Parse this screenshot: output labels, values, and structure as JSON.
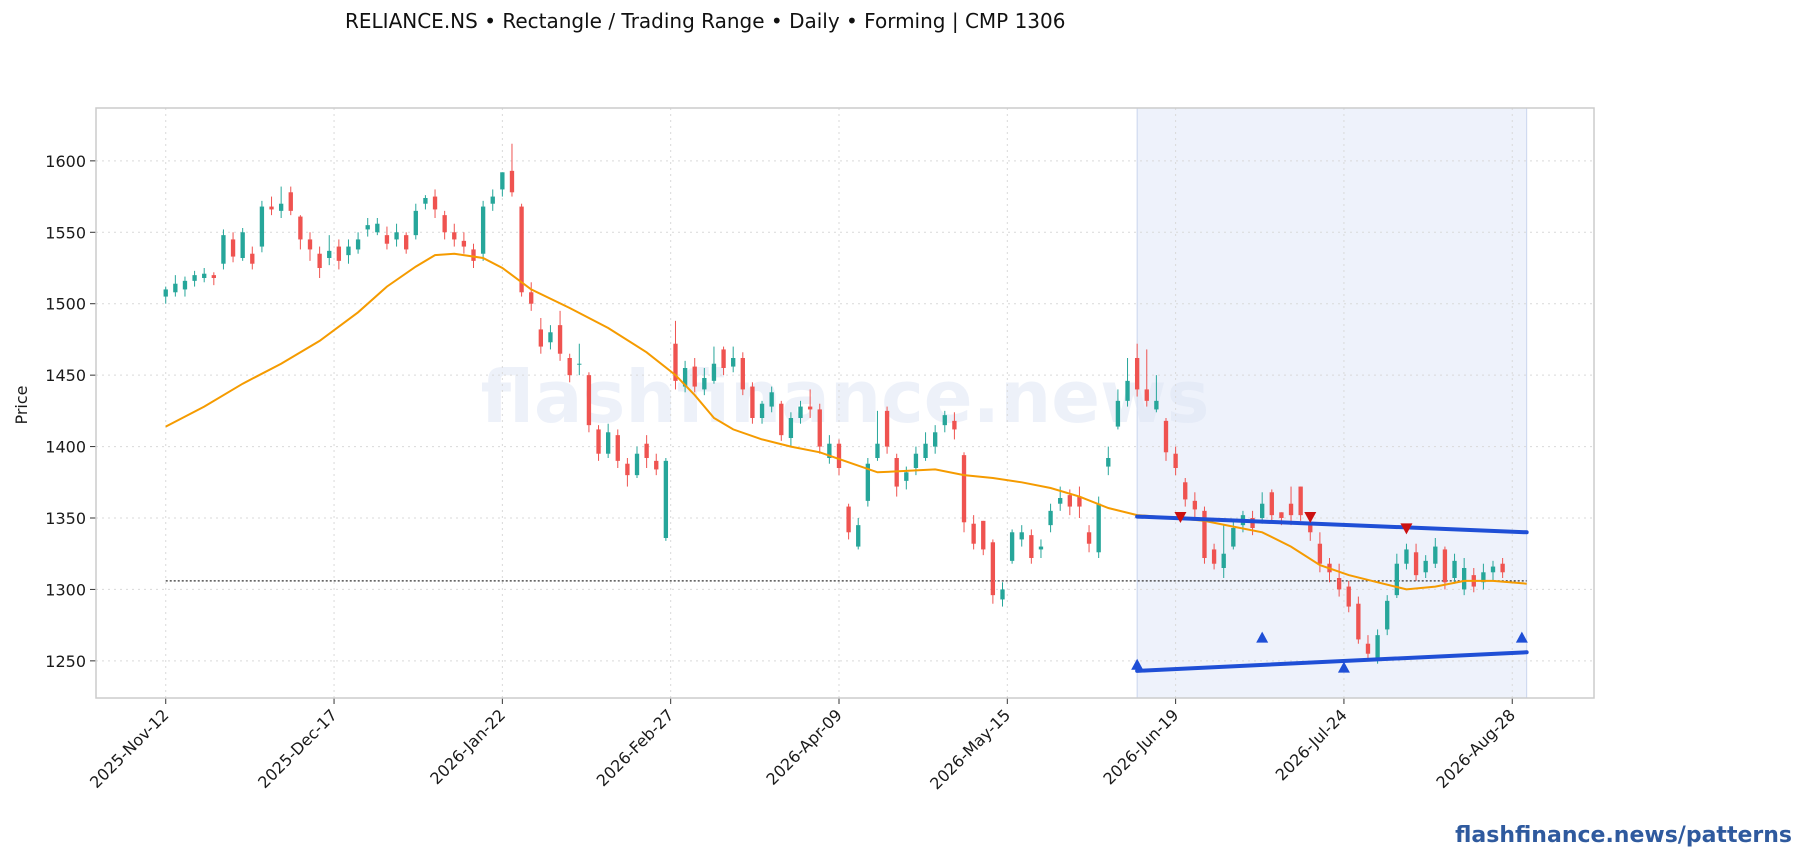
{
  "chart_data": {
    "type": "candlestick",
    "title": "RELIANCE.NS  •  Rectangle / Trading Range  •  Daily  •  Forming  |  CMP 1306",
    "ticker": "RELIANCE.NS",
    "pattern": "Rectangle / Trading Range",
    "timeframe": "Daily",
    "status": "Forming",
    "cmp": 1306,
    "xlabel": "",
    "ylabel": "Price",
    "ylim": [
      1224,
      1637
    ],
    "y_ticks": [
      1250,
      1300,
      1350,
      1400,
      1450,
      1500,
      1550,
      1600
    ],
    "x_ticks": [
      {
        "label": "2025-Nov-12",
        "index": 0
      },
      {
        "label": "2025-Dec-17",
        "index": 35
      },
      {
        "label": "2026-Jan-22",
        "index": 70
      },
      {
        "label": "2026-Feb-27",
        "index": 105
      },
      {
        "label": "2026-Apr-09",
        "index": 140
      },
      {
        "label": "2026-May-15",
        "index": 175
      },
      {
        "label": "2026-Jun-19",
        "index": 210
      },
      {
        "label": "2026-Jul-24",
        "index": 245
      },
      {
        "label": "2026-Aug-28",
        "index": 280
      }
    ],
    "x_range": [
      -14.5,
      297
    ],
    "grid": true,
    "colors": {
      "up": "#26a69a",
      "down": "#ef5350",
      "ma": "#f59b00",
      "pattern_line": "#1f4fd6",
      "marker_high": "#cc1111",
      "marker_low": "#1f4fd6",
      "zone": "#e8edfa",
      "cmp_line": "#333333",
      "grid": "#d9d9d9",
      "frame": "#cccccc"
    },
    "cmp_line": {
      "value": 1306,
      "from_index": 0,
      "to_index": 283
    },
    "pattern_zone": {
      "from_index": 202,
      "to_index": 283
    },
    "resistance_line": {
      "from": {
        "index": 202,
        "value": 1351
      },
      "to": {
        "index": 283,
        "value": 1340
      }
    },
    "support_line": {
      "from": {
        "index": 202,
        "value": 1243
      },
      "to": {
        "index": 283,
        "value": 1256
      }
    },
    "marker_highs": [
      {
        "index": 211,
        "value": 1350
      },
      {
        "index": 238,
        "value": 1350
      },
      {
        "index": 258,
        "value": 1342
      }
    ],
    "marker_lows": [
      {
        "index": 202,
        "value": 1248
      },
      {
        "index": 228,
        "value": 1267
      },
      {
        "index": 245,
        "value": 1246
      },
      {
        "index": 282,
        "value": 1267
      }
    ],
    "moving_average": [
      [
        0,
        1414
      ],
      [
        8,
        1428
      ],
      [
        16,
        1444
      ],
      [
        24,
        1458
      ],
      [
        32,
        1474
      ],
      [
        40,
        1494
      ],
      [
        46,
        1512
      ],
      [
        52,
        1526
      ],
      [
        56,
        1534
      ],
      [
        60,
        1535
      ],
      [
        66,
        1532
      ],
      [
        70,
        1525
      ],
      [
        76,
        1510
      ],
      [
        84,
        1497
      ],
      [
        92,
        1483
      ],
      [
        100,
        1466
      ],
      [
        106,
        1450
      ],
      [
        110,
        1436
      ],
      [
        114,
        1420
      ],
      [
        118,
        1412
      ],
      [
        124,
        1405
      ],
      [
        130,
        1400
      ],
      [
        136,
        1396
      ],
      [
        142,
        1389
      ],
      [
        148,
        1382
      ],
      [
        154,
        1383
      ],
      [
        160,
        1384
      ],
      [
        166,
        1380
      ],
      [
        172,
        1378
      ],
      [
        178,
        1375
      ],
      [
        184,
        1371
      ],
      [
        190,
        1365
      ],
      [
        196,
        1357
      ],
      [
        202,
        1352
      ],
      [
        210,
        1350
      ],
      [
        216,
        1348
      ],
      [
        222,
        1344
      ],
      [
        228,
        1340
      ],
      [
        234,
        1330
      ],
      [
        240,
        1317
      ],
      [
        246,
        1310
      ],
      [
        252,
        1305
      ],
      [
        258,
        1300
      ],
      [
        264,
        1302
      ],
      [
        270,
        1306
      ],
      [
        276,
        1306
      ],
      [
        283,
        1304
      ]
    ],
    "ma_points_xy": [],
    "candles": [
      [
        0,
        1505,
        1510,
        1500,
        1512
      ],
      [
        2,
        1508,
        1514,
        1505,
        1520
      ],
      [
        4,
        1510,
        1516,
        1505,
        1519
      ],
      [
        6,
        1516,
        1520,
        1512,
        1523
      ],
      [
        8,
        1518,
        1521,
        1515,
        1525
      ],
      [
        10,
        1520,
        1518,
        1513,
        1522
      ],
      [
        12,
        1528,
        1548,
        1524,
        1552
      ],
      [
        14,
        1545,
        1533,
        1529,
        1550
      ],
      [
        16,
        1532,
        1550,
        1530,
        1553
      ],
      [
        18,
        1535,
        1528,
        1524,
        1540
      ],
      [
        20,
        1540,
        1568,
        1536,
        1572
      ],
      [
        22,
        1568,
        1566,
        1562,
        1575
      ],
      [
        24,
        1565,
        1570,
        1560,
        1582
      ],
      [
        26,
        1578,
        1565,
        1562,
        1582
      ],
      [
        28,
        1561,
        1545,
        1538,
        1562
      ],
      [
        30,
        1545,
        1538,
        1530,
        1550
      ],
      [
        32,
        1535,
        1525,
        1518,
        1540
      ],
      [
        34,
        1532,
        1537,
        1527,
        1548
      ],
      [
        36,
        1540,
        1530,
        1524,
        1545
      ],
      [
        38,
        1534,
        1540,
        1528,
        1545
      ],
      [
        40,
        1538,
        1545,
        1535,
        1550
      ],
      [
        42,
        1552,
        1555,
        1547,
        1560
      ],
      [
        44,
        1550,
        1556,
        1548,
        1560
      ],
      [
        46,
        1548,
        1542,
        1538,
        1554
      ],
      [
        48,
        1545,
        1550,
        1540,
        1556
      ],
      [
        50,
        1548,
        1538,
        1535,
        1550
      ],
      [
        52,
        1548,
        1565,
        1545,
        1570
      ],
      [
        54,
        1570,
        1574,
        1566,
        1576
      ],
      [
        56,
        1575,
        1566,
        1560,
        1580
      ],
      [
        58,
        1562,
        1550,
        1545,
        1565
      ],
      [
        60,
        1550,
        1545,
        1540,
        1556
      ],
      [
        62,
        1544,
        1540,
        1535,
        1550
      ],
      [
        64,
        1538,
        1530,
        1525,
        1542
      ],
      [
        66,
        1535,
        1568,
        1530,
        1572
      ],
      [
        68,
        1570,
        1575,
        1565,
        1580
      ],
      [
        70,
        1580,
        1592,
        1575,
        1592
      ],
      [
        72,
        1593,
        1578,
        1575,
        1612
      ],
      [
        74,
        1568,
        1508,
        1505,
        1570
      ],
      [
        76,
        1508,
        1500,
        1495,
        1515
      ],
      [
        78,
        1482,
        1470,
        1465,
        1490
      ],
      [
        80,
        1473,
        1480,
        1468,
        1485
      ],
      [
        82,
        1485,
        1465,
        1460,
        1495
      ],
      [
        84,
        1462,
        1450,
        1445,
        1465
      ],
      [
        86,
        1458,
        1458,
        1450,
        1472
      ],
      [
        88,
        1450,
        1415,
        1410,
        1452
      ],
      [
        90,
        1412,
        1395,
        1390,
        1415
      ],
      [
        92,
        1395,
        1410,
        1392,
        1416
      ],
      [
        94,
        1408,
        1390,
        1385,
        1412
      ],
      [
        96,
        1388,
        1380,
        1372,
        1392
      ],
      [
        98,
        1380,
        1395,
        1378,
        1400
      ],
      [
        100,
        1402,
        1392,
        1385,
        1408
      ],
      [
        102,
        1390,
        1384,
        1380,
        1395
      ],
      [
        104,
        1336,
        1390,
        1334,
        1392
      ],
      [
        106,
        1472,
        1446,
        1440,
        1488
      ],
      [
        108,
        1442,
        1455,
        1438,
        1460
      ],
      [
        110,
        1456,
        1442,
        1438,
        1462
      ],
      [
        112,
        1440,
        1448,
        1436,
        1455
      ],
      [
        114,
        1446,
        1458,
        1444,
        1470
      ],
      [
        116,
        1468,
        1455,
        1450,
        1470
      ],
      [
        118,
        1456,
        1462,
        1452,
        1470
      ],
      [
        120,
        1462,
        1440,
        1436,
        1466
      ],
      [
        122,
        1442,
        1420,
        1416,
        1445
      ],
      [
        124,
        1420,
        1430,
        1416,
        1432
      ],
      [
        126,
        1428,
        1438,
        1424,
        1442
      ],
      [
        128,
        1430,
        1408,
        1404,
        1432
      ],
      [
        130,
        1406,
        1420,
        1400,
        1424
      ],
      [
        132,
        1420,
        1428,
        1416,
        1432
      ],
      [
        134,
        1428,
        1426,
        1420,
        1440
      ],
      [
        136,
        1426,
        1400,
        1395,
        1430
      ],
      [
        138,
        1392,
        1402,
        1388,
        1408
      ],
      [
        140,
        1402,
        1385,
        1380,
        1405
      ],
      [
        142,
        1358,
        1340,
        1335,
        1360
      ],
      [
        144,
        1330,
        1345,
        1328,
        1350
      ],
      [
        146,
        1362,
        1388,
        1358,
        1392
      ],
      [
        148,
        1392,
        1402,
        1390,
        1425
      ],
      [
        150,
        1425,
        1400,
        1395,
        1428
      ],
      [
        152,
        1392,
        1372,
        1365,
        1395
      ],
      [
        154,
        1376,
        1382,
        1370,
        1386
      ],
      [
        156,
        1385,
        1395,
        1380,
        1400
      ],
      [
        158,
        1392,
        1402,
        1390,
        1410
      ],
      [
        160,
        1400,
        1410,
        1395,
        1415
      ],
      [
        162,
        1415,
        1422,
        1410,
        1425
      ],
      [
        164,
        1418,
        1412,
        1405,
        1424
      ],
      [
        166,
        1394,
        1347,
        1340,
        1396
      ],
      [
        168,
        1346,
        1332,
        1328,
        1352
      ],
      [
        170,
        1348,
        1328,
        1324,
        1348
      ],
      [
        172,
        1333,
        1296,
        1290,
        1335
      ],
      [
        174,
        1293,
        1300,
        1288,
        1305
      ],
      [
        176,
        1320,
        1340,
        1318,
        1342
      ],
      [
        178,
        1335,
        1340,
        1330,
        1345
      ],
      [
        180,
        1338,
        1322,
        1318,
        1342
      ],
      [
        182,
        1328,
        1330,
        1322,
        1335
      ],
      [
        184,
        1345,
        1355,
        1340,
        1360
      ],
      [
        186,
        1360,
        1364,
        1355,
        1372
      ],
      [
        188,
        1366,
        1358,
        1352,
        1370
      ],
      [
        190,
        1365,
        1358,
        1350,
        1372
      ],
      [
        192,
        1340,
        1332,
        1326,
        1345
      ],
      [
        194,
        1326,
        1360,
        1322,
        1365
      ],
      [
        196,
        1386,
        1392,
        1380,
        1400
      ],
      [
        198,
        1414,
        1432,
        1412,
        1440
      ],
      [
        200,
        1432,
        1446,
        1428,
        1462
      ],
      [
        202,
        1462,
        1440,
        1435,
        1472
      ],
      [
        204,
        1440,
        1432,
        1428,
        1468
      ],
      [
        206,
        1426,
        1432,
        1424,
        1450
      ],
      [
        208,
        1418,
        1396,
        1390,
        1420
      ],
      [
        210,
        1395,
        1385,
        1380,
        1400
      ],
      [
        212,
        1375,
        1363,
        1358,
        1378
      ],
      [
        214,
        1362,
        1356,
        1350,
        1368
      ],
      [
        216,
        1355,
        1322,
        1318,
        1358
      ],
      [
        218,
        1328,
        1318,
        1314,
        1332
      ],
      [
        220,
        1315,
        1325,
        1308,
        1345
      ],
      [
        222,
        1330,
        1343,
        1328,
        1348
      ],
      [
        224,
        1345,
        1352,
        1340,
        1355
      ],
      [
        226,
        1350,
        1343,
        1338,
        1355
      ],
      [
        228,
        1350,
        1360,
        1346,
        1368
      ],
      [
        230,
        1368,
        1352,
        1346,
        1370
      ],
      [
        232,
        1354,
        1350,
        1345,
        1354
      ],
      [
        234,
        1360,
        1352,
        1345,
        1372
      ],
      [
        236,
        1372,
        1352,
        1348,
        1372
      ],
      [
        238,
        1345,
        1340,
        1334,
        1348
      ],
      [
        240,
        1332,
        1318,
        1312,
        1340
      ],
      [
        242,
        1318,
        1312,
        1305,
        1322
      ],
      [
        244,
        1308,
        1300,
        1295,
        1318
      ],
      [
        246,
        1302,
        1288,
        1284,
        1306
      ],
      [
        248,
        1290,
        1265,
        1262,
        1295
      ],
      [
        250,
        1262,
        1255,
        1250,
        1268
      ],
      [
        252,
        1252,
        1268,
        1248,
        1272
      ],
      [
        254,
        1272,
        1292,
        1268,
        1296
      ],
      [
        256,
        1296,
        1318,
        1294,
        1325
      ],
      [
        258,
        1318,
        1328,
        1314,
        1332
      ],
      [
        260,
        1326,
        1310,
        1306,
        1332
      ],
      [
        262,
        1312,
        1320,
        1308,
        1324
      ],
      [
        264,
        1318,
        1330,
        1315,
        1336
      ],
      [
        266,
        1328,
        1305,
        1300,
        1330
      ],
      [
        268,
        1308,
        1320,
        1304,
        1325
      ],
      [
        270,
        1300,
        1315,
        1296,
        1322
      ],
      [
        272,
        1310,
        1302,
        1298,
        1315
      ],
      [
        274,
        1305,
        1312,
        1300,
        1318
      ],
      [
        276,
        1312,
        1316,
        1306,
        1320
      ],
      [
        278,
        1318,
        1312,
        1308,
        1322
      ]
    ]
  },
  "watermark": "flashfinance.news",
  "brand": "flashfinance.news/patterns"
}
